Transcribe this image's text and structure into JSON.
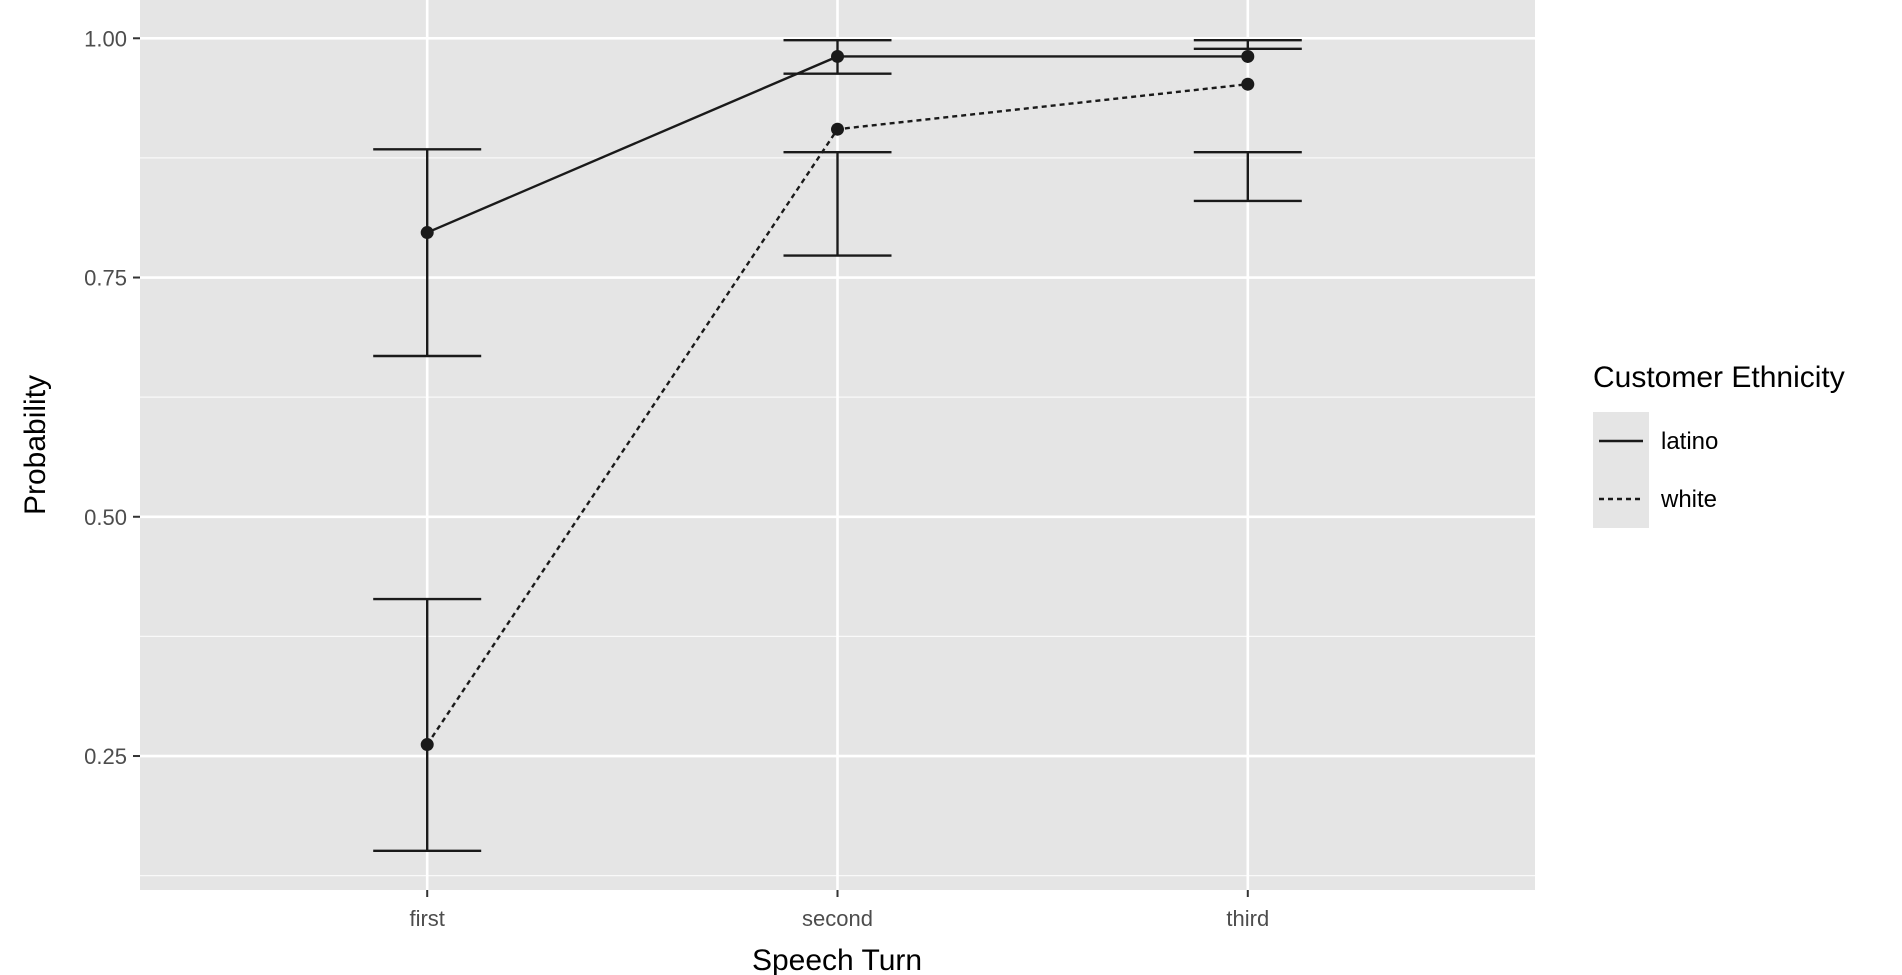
{
  "chart_data": {
    "type": "line",
    "title": "",
    "xlabel": "Speech Turn",
    "ylabel": "Probability",
    "categories": [
      "first",
      "second",
      "third"
    ],
    "y_ticks": [
      "0.25",
      "0.50",
      "0.75",
      "1.00"
    ],
    "ylim": [
      0.11,
      1.04
    ],
    "grid": true,
    "legend": {
      "title": "Customer Ethnicity",
      "position": "right"
    },
    "series": [
      {
        "name": "latino",
        "line_style": "solid",
        "values": [
          0.797,
          0.981,
          0.981
        ],
        "error_low": [
          0.668,
          0.963,
          0.989
        ],
        "error_high": [
          0.884,
          0.998,
          0.998
        ]
      },
      {
        "name": "white",
        "line_style": "dashed",
        "values": [
          0.262,
          0.905,
          0.952
        ],
        "error_low": [
          0.151,
          0.773,
          0.83
        ],
        "error_high": [
          0.414,
          0.881,
          0.881
        ]
      }
    ],
    "colors": {
      "panel": "#e5e5e5",
      "grid": "#ffffff",
      "line": "#1a1a1a",
      "legend_key": "#e5e5e5"
    }
  }
}
